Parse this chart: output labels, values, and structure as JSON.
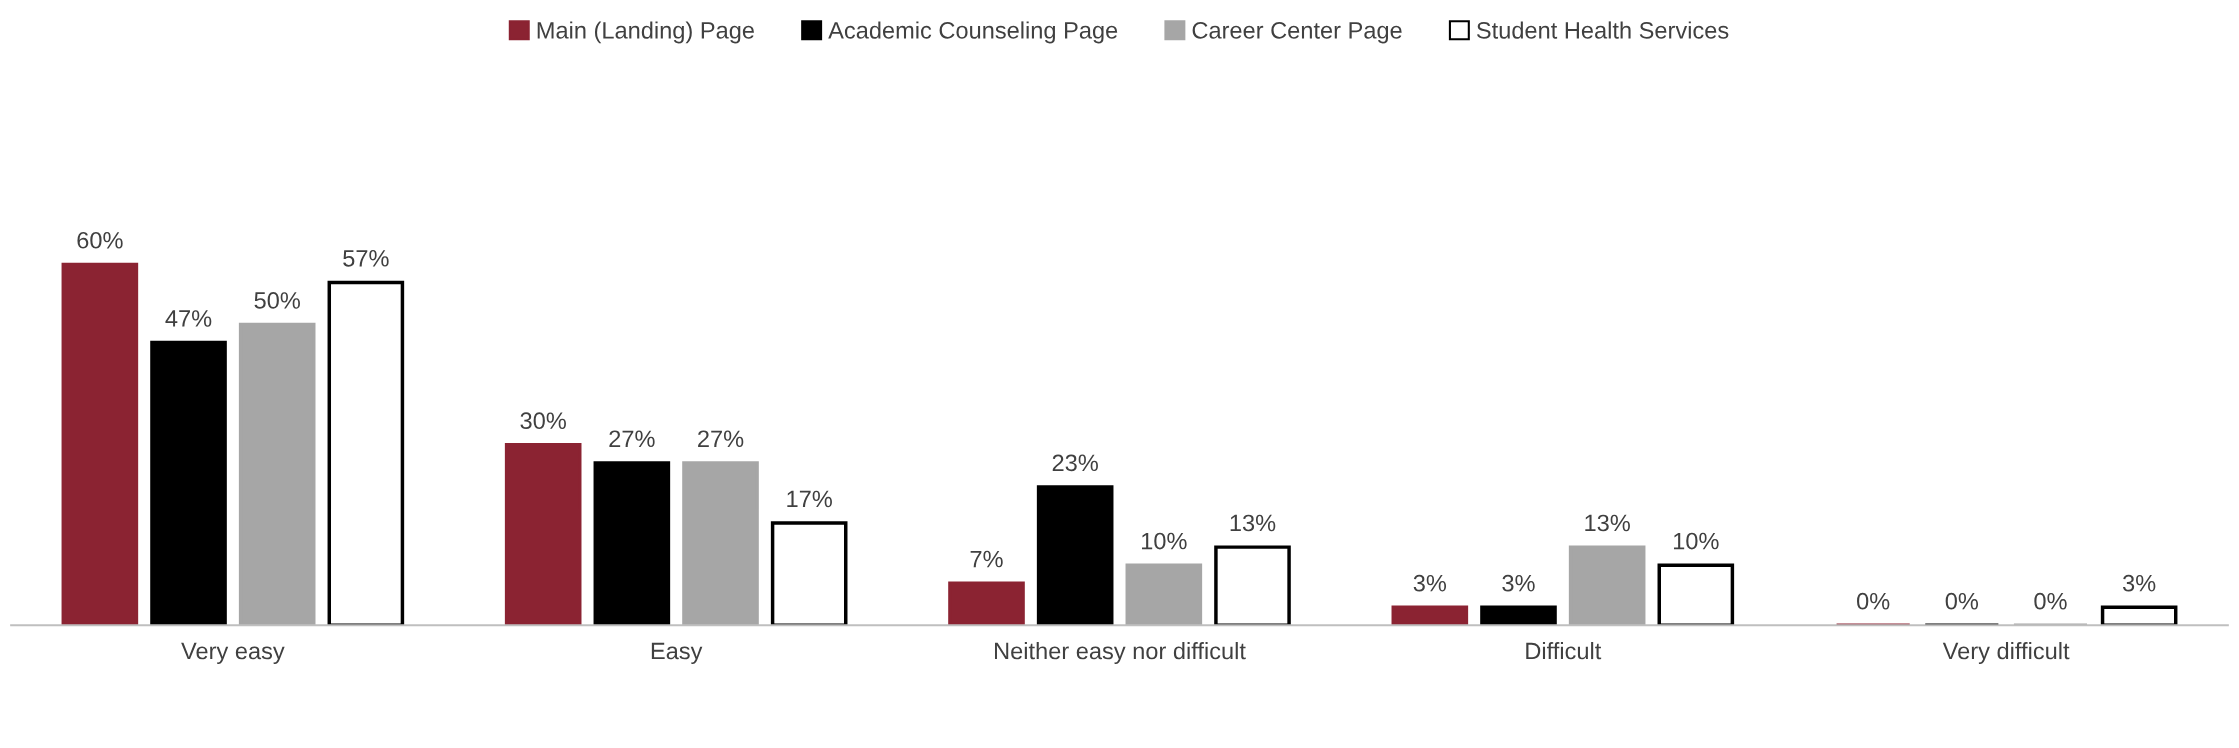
{
  "chart_data": {
    "type": "bar",
    "categories": [
      "Very easy",
      "Easy",
      "Neither easy nor difficult",
      "Difficult",
      "Very difficult"
    ],
    "series": [
      {
        "name": "Main (Landing) Page",
        "color": "#8b2332",
        "values": [
          60,
          30,
          7,
          3,
          0
        ],
        "value_labels": [
          "60%",
          "30%",
          "7%",
          "3%",
          "0%"
        ]
      },
      {
        "name": "Academic Counseling Page",
        "color": "#000000",
        "values": [
          47,
          27,
          23,
          3,
          0
        ],
        "value_labels": [
          "47%",
          "27%",
          "23%",
          "3%",
          "0%"
        ]
      },
      {
        "name": "Career Center Page",
        "color": "#a6a6a6",
        "values": [
          50,
          27,
          10,
          13,
          0
        ],
        "value_labels": [
          "50%",
          "27%",
          "10%",
          "13%",
          "0%"
        ]
      },
      {
        "name": "Student Health Services",
        "color": "#ffffff",
        "values": [
          57,
          17,
          13,
          10,
          3
        ],
        "value_labels": [
          "57%",
          "17%",
          "13%",
          "10%",
          "3%"
        ]
      }
    ],
    "legend": "top",
    "grid": false
  }
}
